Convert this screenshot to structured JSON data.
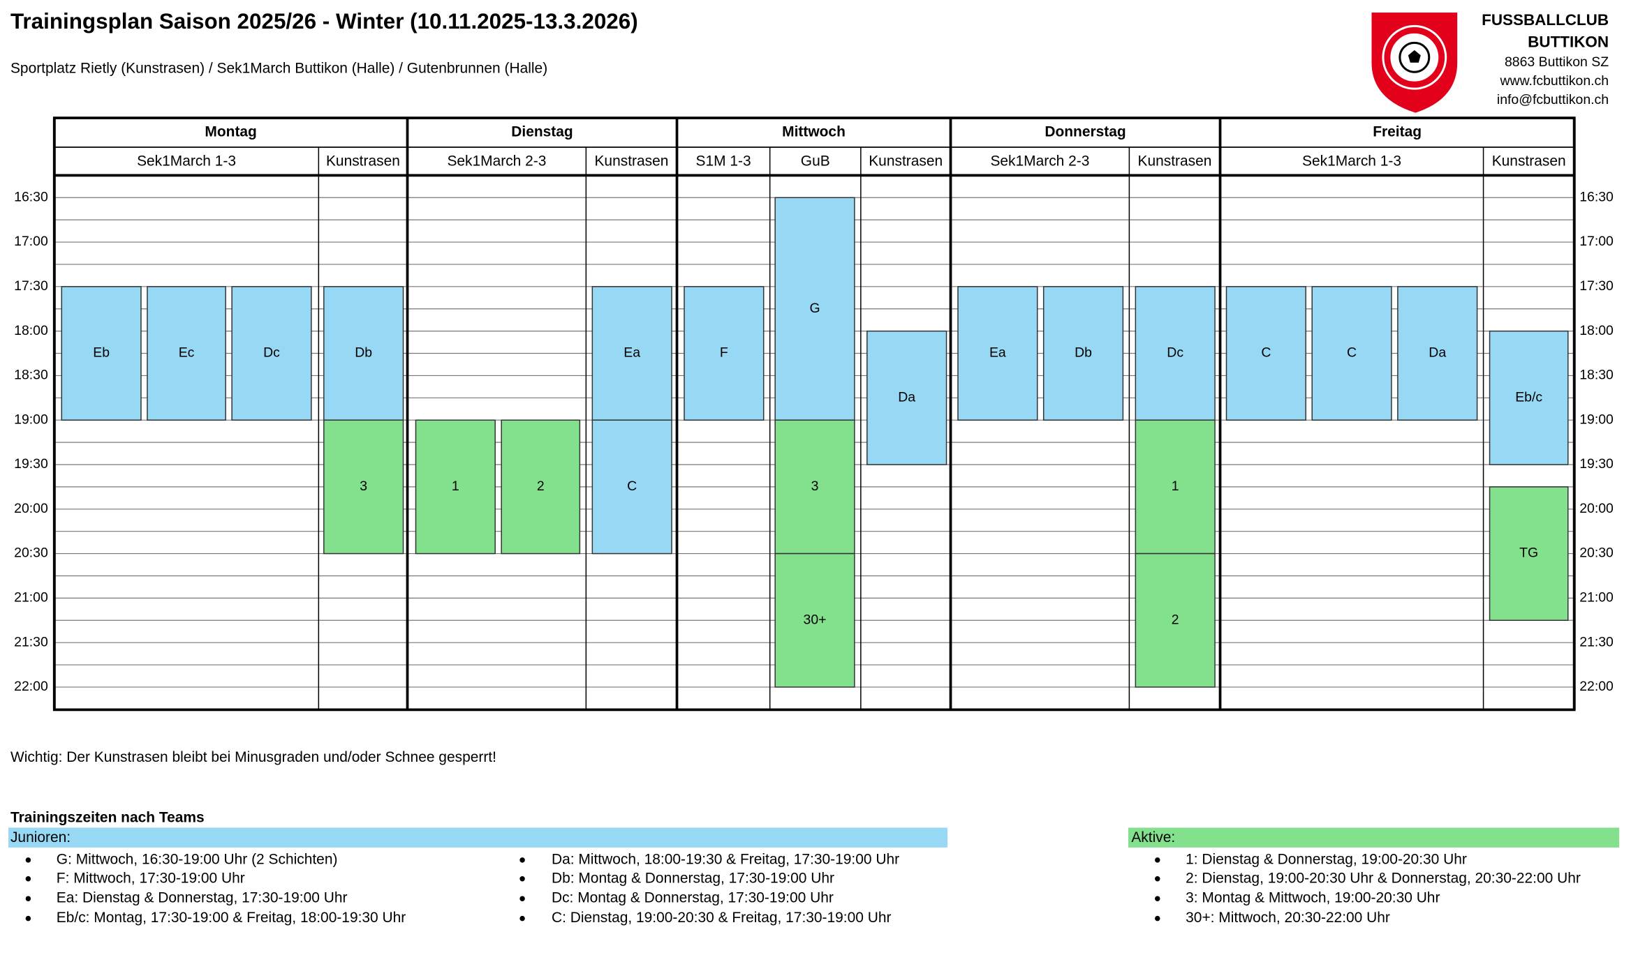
{
  "header": {
    "title": "Trainingsplan Saison 2025/26 - Winter (10.11.2025-13.3.2026)",
    "subtitle": "Sportplatz Rietly (Kunstrasen) / Sek1March Buttikon (Halle) / Gutenbrunnen (Halle)",
    "club": [
      "FUSSBALLCLUB",
      "BUTTIKON",
      "8863 Buttikon SZ",
      "www.fcbuttikon.ch",
      "info@fcbuttikon.ch"
    ]
  },
  "schedule": {
    "days": [
      {
        "name": "Montag",
        "venues": [
          "Sek1March 1-3",
          "Kunstrasen"
        ]
      },
      {
        "name": "Dienstag",
        "venues": [
          "Sek1March 2-3",
          "Kunstrasen"
        ]
      },
      {
        "name": "Mittwoch",
        "venues": [
          "S1M 1-3",
          "GuB",
          "Kunstrasen"
        ]
      },
      {
        "name": "Donnerstag",
        "venues": [
          "Sek1March 2-3",
          "Kunstrasen"
        ]
      },
      {
        "name": "Freitag",
        "venues": [
          "Sek1March 1-3",
          "Kunstrasen"
        ]
      }
    ],
    "times": [
      "16:30",
      "17:00",
      "17:30",
      "18:00",
      "18:30",
      "19:00",
      "19:30",
      "20:00",
      "20:30",
      "21:00",
      "21:30",
      "22:00"
    ],
    "blocks": [
      "Eb",
      "Ec",
      "Dc",
      "Db",
      "3",
      "1",
      "2",
      "Ea",
      "C",
      "F",
      "G",
      "3",
      "30+",
      "Da",
      "Ea",
      "Db",
      "Dc",
      "1",
      "2",
      "C",
      "C",
      "Da",
      "Eb/c",
      "TG"
    ]
  },
  "notice": "Wichtig: Der Kunstrasen bleibt bei Minusgraden und/oder Schnee gesperrt!",
  "teams": {
    "title": "Trainingszeiten nach Teams",
    "juniors": {
      "label": "Junioren:",
      "items": [
        "G: Mittwoch, 16:30-19:00 Uhr (2 Schichten)",
        "F: Mittwoch, 17:30-19:00 Uhr",
        "Ea: Dienstag & Donnerstag, 17:30-19:00 Uhr",
        "Eb/c: Montag, 17:30-19:00 & Freitag, 18:00-19:30 Uhr",
        "Da: Mittwoch, 18:00-19:30 & Freitag, 17:30-19:00 Uhr",
        "Db: Montag & Donnerstag, 17:30-19:00 Uhr",
        "Dc: Montag & Donnerstag, 17:30-19:00 Uhr",
        "C: Dienstag, 19:00-20:30 & Freitag, 17:30-19:00 Uhr"
      ]
    },
    "active": {
      "label": "Aktive:",
      "items": [
        "1: Dienstag & Donnerstag, 19:00-20:30 Uhr",
        "2: Dienstag, 19:00-20:30 Uhr & Donnerstag, 20:30-22:00 Uhr",
        "3: Montag & Mittwoch, 19:00-20:30 Uhr",
        "30+: Mittwoch, 20:30-22:00 Uhr"
      ]
    }
  }
}
